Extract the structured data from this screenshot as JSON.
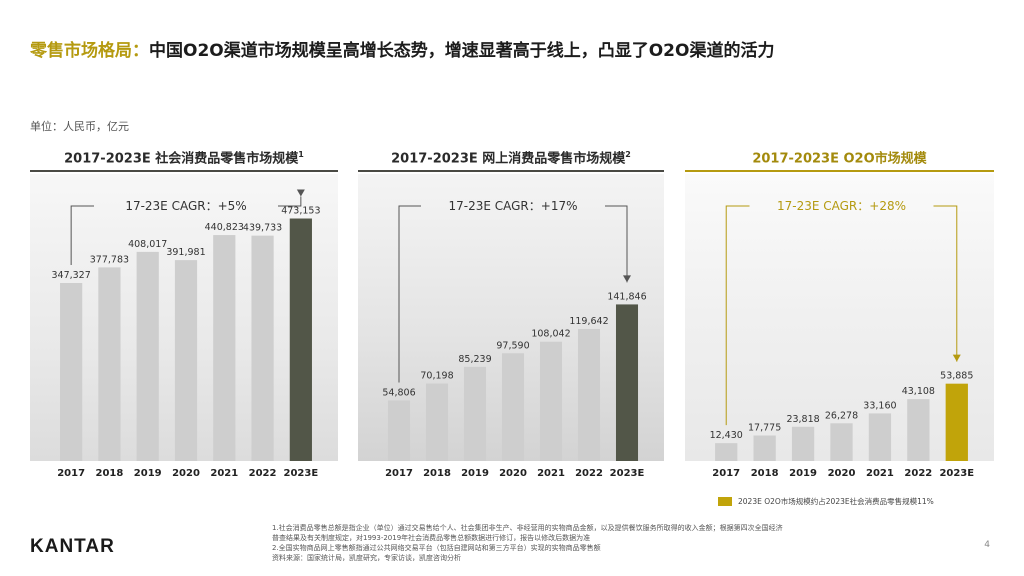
{
  "title": {
    "accent": "零售市场格局：",
    "text": "中国O2O渠道市场规模呈高增长态势，增速显著高于线上，凸显了O2O渠道的活力"
  },
  "unit": "单位：人民币，亿元",
  "colors": {
    "bar": "#cecece",
    "highlight_dark": "#525648",
    "highlight_gold": "#c1a40a",
    "accent": "#b59a10"
  },
  "chart_data": [
    {
      "type": "bar",
      "title": "2017-2023E 社会消费品零售市场规模",
      "title_sup": "1",
      "categories": [
        "2017",
        "2018",
        "2019",
        "2020",
        "2021",
        "2022",
        "2023E"
      ],
      "values": [
        347327,
        377783,
        408017,
        391981,
        440823,
        439733,
        473153
      ],
      "labels": [
        "347,327",
        "377,783",
        "408,017",
        "391,981",
        "440,823",
        "439,733",
        "473,153"
      ],
      "cagr": "17-23E CAGR：+5%",
      "ylim": [
        0,
        560000
      ],
      "highlight": "dark"
    },
    {
      "type": "bar",
      "title": "2017-2023E 网上消费品零售市场规模",
      "title_sup": "2",
      "categories": [
        "2017",
        "2018",
        "2019",
        "2020",
        "2021",
        "2022",
        "2023E"
      ],
      "values": [
        54806,
        70198,
        85239,
        97590,
        108042,
        119642,
        141846
      ],
      "labels": [
        "54,806",
        "70,198",
        "85,239",
        "97,590",
        "108,042",
        "119,642",
        "141,846"
      ],
      "cagr": "17-23E CAGR：+17%",
      "ylim": [
        0,
        260000
      ],
      "highlight": "dark"
    },
    {
      "type": "bar",
      "title": "2017-2023E O2O市场规模",
      "title_sup": "",
      "categories": [
        "2017",
        "2018",
        "2019",
        "2020",
        "2021",
        "2022",
        "2023E"
      ],
      "values": [
        12430,
        17775,
        23818,
        26278,
        33160,
        43108,
        53885
      ],
      "labels": [
        "12,430",
        "17,775",
        "23,818",
        "26,278",
        "33,160",
        "43,108",
        "53,885"
      ],
      "cagr": "17-23E CAGR：+28%",
      "ylim": [
        0,
        200000
      ],
      "highlight": "gold"
    }
  ],
  "legend": "2023E O2O市场规模约占2023E社会消费品零售规模11%",
  "notes": [
    "1.社会消费品零售总额是指企业（单位）通过交易售给个人、社会集团非生产、非经营用的实物商品金额，以及提供餐饮服务所取得的收入金额；根据第四次全国经济",
    "   普查结果及有关制度规定，对1993-2019年社会消费品零售总额数据进行修订，报告以修改后数据为准",
    "2.全国实物商品网上零售额指通过公共网络交易平台（包括自建网站和第三方平台）实现的实物商品零售额",
    "资料来源：国家统计局，凯度研究，专家访谈，凯度咨询分析"
  ],
  "logo": "KANTAR",
  "page_number": "4"
}
